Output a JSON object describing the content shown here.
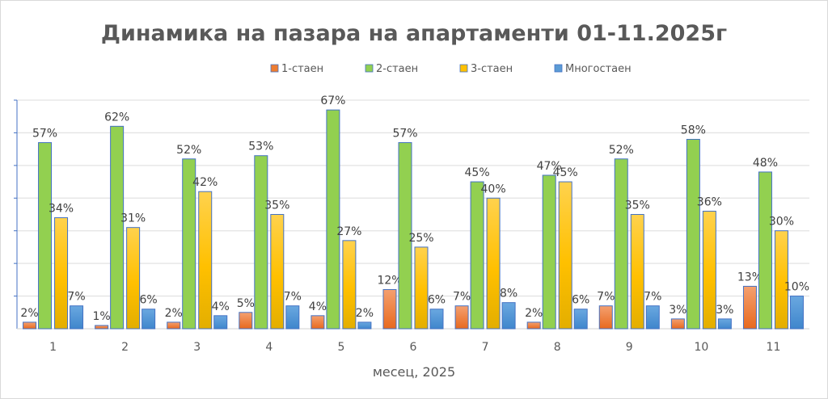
{
  "chart_data": {
    "type": "bar",
    "title": "Динамика на пазара на апартаменти 01-11.2025г",
    "xlabel": "месец, 2025",
    "ylabel": "",
    "ylim": [
      0,
      70
    ],
    "grid": true,
    "legend_position": "top",
    "categories": [
      "1",
      "2",
      "3",
      "4",
      "5",
      "6",
      "7",
      "8",
      "9",
      "10",
      "11"
    ],
    "series": [
      {
        "name": "1-стаен",
        "color": "#ED7D31",
        "values": [
          2,
          1,
          2,
          5,
          4,
          12,
          7,
          2,
          7,
          3,
          13
        ]
      },
      {
        "name": "2-стаен",
        "color": "#92D050",
        "values": [
          57,
          62,
          52,
          53,
          67,
          57,
          45,
          47,
          52,
          58,
          48
        ]
      },
      {
        "name": "3-стаен",
        "color": "#FFC000",
        "values": [
          34,
          31,
          42,
          35,
          27,
          25,
          40,
          45,
          35,
          36,
          30
        ]
      },
      {
        "name": "Многостаен",
        "color": "#5B9BD5",
        "values": [
          7,
          6,
          4,
          7,
          2,
          6,
          8,
          6,
          7,
          3,
          10
        ]
      }
    ],
    "value_suffix": "%"
  }
}
